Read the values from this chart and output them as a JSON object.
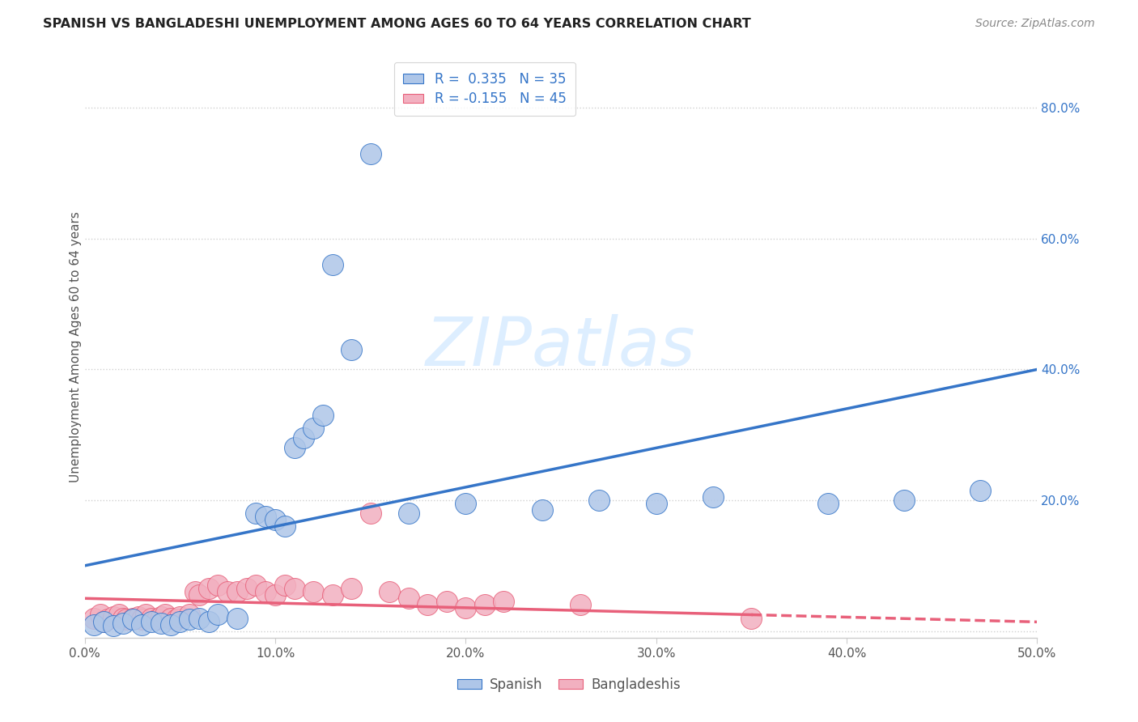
{
  "title": "SPANISH VS BANGLADESHI UNEMPLOYMENT AMONG AGES 60 TO 64 YEARS CORRELATION CHART",
  "source": "Source: ZipAtlas.com",
  "ylabel": "Unemployment Among Ages 60 to 64 years",
  "xlim": [
    0,
    0.5
  ],
  "ylim": [
    -0.01,
    0.88
  ],
  "yticks": [
    0.0,
    0.2,
    0.4,
    0.6,
    0.8
  ],
  "ytick_labels": [
    "",
    "20.0%",
    "40.0%",
    "60.0%",
    "80.0%"
  ],
  "xticks": [
    0.0,
    0.1,
    0.2,
    0.3,
    0.4,
    0.5
  ],
  "xtick_labels": [
    "0.0%",
    "10.0%",
    "20.0%",
    "30.0%",
    "40.0%",
    "50.0%"
  ],
  "legend_r_spanish": "R =  0.335   N = 35",
  "legend_r_bangladeshi": "R = -0.155   N = 45",
  "spanish_color": "#aec6e8",
  "bangladeshi_color": "#f2b0c0",
  "spanish_line_color": "#3575c8",
  "bangladeshi_line_color": "#e8607a",
  "spanish_x": [
    0.005,
    0.01,
    0.015,
    0.02,
    0.025,
    0.03,
    0.035,
    0.04,
    0.045,
    0.05,
    0.055,
    0.06,
    0.065,
    0.07,
    0.08,
    0.09,
    0.095,
    0.1,
    0.105,
    0.11,
    0.115,
    0.12,
    0.125,
    0.13,
    0.14,
    0.15,
    0.17,
    0.2,
    0.24,
    0.27,
    0.3,
    0.33,
    0.39,
    0.43,
    0.47
  ],
  "spanish_y": [
    0.01,
    0.015,
    0.008,
    0.012,
    0.018,
    0.01,
    0.015,
    0.012,
    0.01,
    0.015,
    0.018,
    0.02,
    0.015,
    0.025,
    0.02,
    0.18,
    0.175,
    0.17,
    0.16,
    0.28,
    0.295,
    0.31,
    0.33,
    0.56,
    0.43,
    0.73,
    0.18,
    0.195,
    0.185,
    0.2,
    0.195,
    0.205,
    0.195,
    0.2,
    0.215
  ],
  "bangladeshi_x": [
    0.005,
    0.008,
    0.01,
    0.012,
    0.015,
    0.018,
    0.02,
    0.022,
    0.025,
    0.028,
    0.03,
    0.032,
    0.035,
    0.038,
    0.04,
    0.042,
    0.045,
    0.048,
    0.05,
    0.055,
    0.058,
    0.06,
    0.065,
    0.07,
    0.075,
    0.08,
    0.085,
    0.09,
    0.095,
    0.1,
    0.105,
    0.11,
    0.12,
    0.13,
    0.14,
    0.15,
    0.16,
    0.17,
    0.18,
    0.19,
    0.2,
    0.21,
    0.22,
    0.26,
    0.35
  ],
  "bangladeshi_y": [
    0.02,
    0.025,
    0.015,
    0.018,
    0.022,
    0.025,
    0.02,
    0.018,
    0.02,
    0.022,
    0.018,
    0.025,
    0.02,
    0.018,
    0.022,
    0.025,
    0.02,
    0.018,
    0.022,
    0.025,
    0.06,
    0.055,
    0.065,
    0.07,
    0.06,
    0.06,
    0.065,
    0.07,
    0.06,
    0.055,
    0.07,
    0.065,
    0.06,
    0.055,
    0.065,
    0.18,
    0.06,
    0.05,
    0.04,
    0.045,
    0.035,
    0.04,
    0.045,
    0.04,
    0.02
  ],
  "background_color": "#ffffff",
  "grid_color": "#d0d0d0",
  "watermark_text": "ZIPatlas",
  "watermark_color": "#ddeeff"
}
